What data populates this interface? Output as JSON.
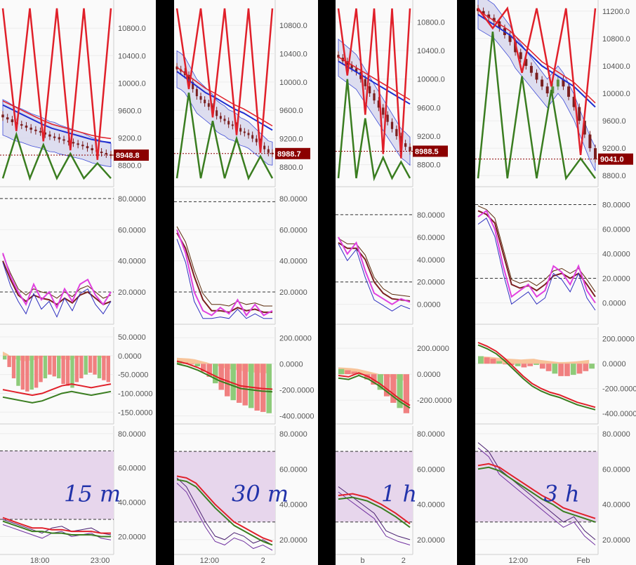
{
  "colors": {
    "price_up": "#5a8f3c",
    "price_down": "#7b1f1f",
    "band_fill": "#d8d8ee",
    "rsi_band_fill": "#e7d6ec",
    "red_line": "#e0202a",
    "green_line": "#3a7d20",
    "blue_line": "#2030d0",
    "magenta_line": "#e040e0",
    "price_tag_bg": "#8b0000",
    "hist_pos": "#8ecb7a",
    "hist_neg": "#f08080",
    "hist_orange": "#f5a05a",
    "separator": "#000000"
  },
  "chart_data": [
    {
      "type": "line",
      "timeframe_note": "15 m",
      "xticks": [
        "18:00",
        "23:00"
      ],
      "last_price": "8948.8",
      "panels": [
        {
          "name": "price",
          "ticks": [
            "10800.0",
            "10400.0",
            "10000.0",
            "9600.0",
            "9200.0",
            "8800.0"
          ],
          "ylim": [
            8550,
            11150
          ]
        },
        {
          "name": "stoch_rsi",
          "ticks": [
            "80.0000",
            "60.0000",
            "40.0000",
            "20.0000"
          ],
          "ylim": [
            2,
            84
          ],
          "dashed_levels": [
            80,
            20
          ]
        },
        {
          "name": "macd",
          "ticks": [
            "50.0000",
            "0.0000",
            "-50.0000",
            "-100.0000",
            "-150.0000"
          ],
          "ylim": [
            -170,
            65
          ]
        },
        {
          "name": "rsi",
          "ticks": [
            "80.0000",
            "60.0000",
            "40.0000",
            "20.0000"
          ],
          "ylim": [
            12,
            82
          ],
          "dashed_levels": [
            70,
            30
          ]
        }
      ],
      "series": {
        "close": [
          9500,
          9470,
          9430,
          9400,
          9380,
          9350,
          9320,
          9300,
          9280,
          9250,
          9220,
          9210,
          9180,
          9160,
          9140,
          9120,
          9100,
          9080,
          9050,
          9020,
          9000,
          8980,
          8960,
          8948.8
        ],
        "ma_blue": [
          9680,
          9610,
          9540,
          9470,
          9400,
          9340,
          9300,
          9260,
          9220,
          9180,
          9150,
          9130
        ],
        "stoch_k": [
          45,
          30,
          20,
          12,
          25,
          15,
          20,
          10,
          22,
          14,
          25,
          28,
          18,
          12,
          20
        ],
        "stoch_d": [
          40,
          28,
          18,
          14,
          18,
          16,
          15,
          12,
          16,
          13,
          18,
          20,
          16,
          12,
          14
        ],
        "macd_hist": [
          -10,
          -30,
          -60,
          -80,
          -90,
          -95,
          -90,
          -85,
          -70,
          -60,
          -50,
          -55,
          -60,
          -75,
          -80,
          -85,
          -70,
          -60,
          -50,
          -45,
          -50,
          -60,
          -65,
          -70
        ],
        "macd_line": [
          -110,
          -115,
          -120,
          -125,
          -120,
          -110,
          -100,
          -95,
          -100,
          -105,
          -100,
          -95
        ],
        "rsi_value": [
          30,
          28,
          26,
          24,
          22,
          25,
          26,
          23,
          24,
          25,
          22,
          21
        ],
        "rsi_ma": [
          31,
          29,
          27,
          25,
          25,
          24,
          24,
          23,
          23,
          23,
          22,
          22
        ]
      }
    },
    {
      "type": "line",
      "timeframe_note": "30 m",
      "xticks": [
        "12:00",
        "2"
      ],
      "last_price": "8988.7",
      "panels": [
        {
          "name": "price",
          "ticks": [
            "10800.0",
            "10400.0",
            "10000.0",
            "9600.0",
            "9200.0",
            "8800.0"
          ],
          "ylim": [
            8580,
            11100
          ]
        },
        {
          "name": "stoch_rsi",
          "ticks": [
            "80.0000",
            "60.0000",
            "40.0000",
            "20.0000"
          ],
          "ylim": [
            2,
            84
          ],
          "dashed_levels": [
            78,
            20
          ]
        },
        {
          "name": "macd",
          "ticks": [
            "200.0000",
            "0.0000",
            "-200.0000",
            "-400.0000"
          ],
          "ylim": [
            -430,
            250
          ]
        },
        {
          "name": "rsi",
          "ticks": [
            "80.0000",
            "60.0000",
            "40.0000",
            "20.0000"
          ],
          "ylim": [
            14,
            82
          ],
          "dashed_levels": [
            70,
            30
          ]
        }
      ],
      "series": {
        "close": [
          10180,
          10150,
          10100,
          10000,
          9900,
          9800,
          9750,
          9700,
          9650,
          9600,
          9520,
          9480,
          9450,
          9400,
          9380,
          9350,
          9300,
          9280,
          9250,
          9200,
          9150,
          9100,
          9050,
          9000,
          8988.7
        ],
        "ma_blue": [
          10150,
          10050,
          9950,
          9850,
          9780,
          9700,
          9620,
          9560,
          9480,
          9400,
          9320
        ],
        "stoch_k": [
          60,
          45,
          20,
          8,
          5,
          10,
          6,
          15,
          5,
          12,
          5,
          8
        ],
        "stoch_d": [
          58,
          48,
          30,
          15,
          8,
          8,
          7,
          10,
          8,
          9,
          7,
          7
        ],
        "macd_hist": [
          20,
          10,
          0,
          -20,
          -60,
          -100,
          -150,
          -200,
          -250,
          -280,
          -300,
          -320,
          -340,
          -360,
          -370,
          -380
        ],
        "macd_line": [
          0,
          -20,
          -50,
          -90,
          -130,
          -160,
          -190,
          -200,
          -210,
          -215
        ],
        "rsi_value": [
          55,
          50,
          40,
          30,
          22,
          20,
          24,
          22,
          18,
          20,
          17
        ],
        "rsi_ma": [
          56,
          55,
          52,
          46,
          40,
          35,
          30,
          27,
          24,
          21,
          19
        ]
      }
    },
    {
      "type": "line",
      "timeframe_note": "1 h",
      "xticks": [
        "b",
        "2"
      ],
      "last_price": "8988.5",
      "panels": [
        {
          "name": "price",
          "ticks": [
            "10800.0",
            "10400.0",
            "10000.0",
            "9600.0",
            "9200.0",
            "8800.0"
          ],
          "ylim": [
            8550,
            11050
          ]
        },
        {
          "name": "stoch_rsi",
          "ticks": [
            "80.0000",
            "60.0000",
            "40.0000",
            "20.0000",
            "0.0000"
          ],
          "ylim": [
            -14,
            100
          ],
          "dashed_levels": [
            80,
            20
          ]
        },
        {
          "name": "macd",
          "ticks": [
            "200.0000",
            "0.0000",
            "-200.0000"
          ],
          "ylim": [
            -350,
            330
          ]
        },
        {
          "name": "rsi",
          "ticks": [
            "80.0000",
            "60.0000",
            "40.0000",
            "20.0000"
          ],
          "ylim": [
            14,
            82
          ],
          "dashed_levels": [
            70,
            30
          ]
        }
      ],
      "series": {
        "close": [
          10300,
          10250,
          10200,
          10150,
          10100,
          10000,
          9900,
          9800,
          9700,
          9600,
          9500,
          9400,
          9300,
          9200,
          9100,
          9050,
          8988.5
        ],
        "ma_blue": [
          10250,
          10150,
          10050,
          9950,
          9850,
          9750,
          9650
        ],
        "stoch_k": [
          60,
          45,
          55,
          30,
          10,
          5,
          0,
          5,
          2
        ],
        "stoch_d": [
          55,
          50,
          50,
          40,
          20,
          10,
          5,
          4,
          3
        ],
        "macd_hist": [
          40,
          30,
          20,
          0,
          -40,
          -80,
          -120,
          -170,
          -220,
          -260,
          -300
        ],
        "macd_line": [
          -30,
          -40,
          -10,
          -40,
          -90,
          -150,
          -210,
          -260
        ],
        "rsi_value": [
          50,
          45,
          40,
          35,
          25,
          22,
          20
        ],
        "rsi_ma": [
          45,
          46,
          44,
          40,
          35,
          29
        ]
      }
    },
    {
      "type": "line",
      "timeframe_note": "3 h",
      "xticks": [
        "12:00",
        "Feb"
      ],
      "last_price": "9041.0",
      "panels": [
        {
          "name": "price",
          "ticks": [
            "11200.0",
            "10800.0",
            "10400.0",
            "10000.0",
            "9600.0",
            "9200.0",
            "8800.0"
          ],
          "ylim": [
            8700,
            11300
          ]
        },
        {
          "name": "stoch_rsi",
          "ticks": [
            "80.0000",
            "60.0000",
            "40.0000",
            "20.0000",
            "0.0000"
          ],
          "ylim": [
            -14,
            90
          ],
          "dashed_levels": [
            80,
            20
          ]
        },
        {
          "name": "macd",
          "ticks": [
            "200.0000",
            "0.0000",
            "-200.0000",
            "-400.0000"
          ],
          "ylim": [
            -450,
            260
          ]
        },
        {
          "name": "rsi",
          "ticks": [
            "80.0000",
            "60.0000",
            "40.0000",
            "20.0000"
          ],
          "ylim": [
            14,
            82
          ],
          "dashed_levels": [
            70,
            30
          ]
        }
      ],
      "series": {
        "close": [
          11200,
          11150,
          11100,
          11050,
          10950,
          10850,
          10750,
          10600,
          10500,
          10400,
          10300,
          10200,
          10100,
          10000,
          10100,
          10200,
          10100,
          9950,
          9800,
          9600,
          9400,
          9200,
          9041
        ],
        "ma_blue": [
          11150,
          11050,
          10950,
          10850,
          10700,
          10550,
          10400,
          10300,
          10200,
          10100,
          9950,
          9800
        ],
        "stoch_k": [
          70,
          75,
          60,
          30,
          5,
          10,
          15,
          5,
          10,
          30,
          25,
          15,
          30,
          10,
          0
        ],
        "stoch_d": [
          75,
          72,
          65,
          40,
          15,
          12,
          14,
          10,
          15,
          22,
          24,
          20,
          24,
          15,
          5
        ],
        "macd_hist": [
          60,
          50,
          40,
          20,
          0,
          -10,
          -20,
          -30,
          -20,
          -10,
          -40,
          -60,
          -80,
          -100,
          -100,
          -90,
          -80,
          -60,
          -40
        ],
        "macd_line": [
          150,
          120,
          80,
          20,
          -50,
          -120,
          -180,
          -220,
          -250,
          -270,
          -300,
          -330,
          -350,
          -370
        ],
        "rsi_value": [
          75,
          70,
          60,
          55,
          50,
          45,
          40,
          35,
          30,
          33,
          25,
          20
        ],
        "rsi_ma": [
          62,
          63,
          61,
          57,
          53,
          49,
          45,
          42,
          38,
          36,
          34,
          32
        ]
      }
    }
  ]
}
